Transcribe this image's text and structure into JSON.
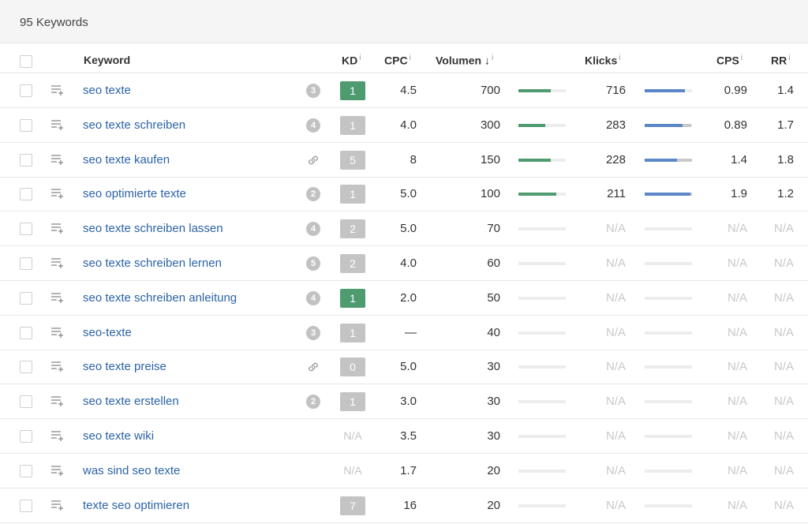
{
  "summary": {
    "count_label": "95 Keywords"
  },
  "colors": {
    "kd_green": "#4e9b6f",
    "kd_gray": "#c4c4c4",
    "volume_bar": "#4e9b6f",
    "click_bar": "#5b87c8"
  },
  "columns": {
    "keyword": "Keyword",
    "kd": "KD",
    "cpc": "CPC",
    "volume": "Volumen",
    "volume_sort": "↓",
    "clicks": "Klicks",
    "cps": "CPS",
    "rr": "RR",
    "info": "i"
  },
  "rows": [
    {
      "keyword": "seo texte",
      "serp": "3",
      "serp_icon": "serp-badge",
      "kd": "1",
      "kd_color": "green",
      "cpc": "4.5",
      "volume": "700",
      "volume_fill": 0.68,
      "clicks": "716",
      "clicks_fill": 0.85,
      "clicks_paid": 0.0,
      "cps": "0.99",
      "rr": "1.4"
    },
    {
      "keyword": "seo texte schreiben",
      "serp": "4",
      "serp_icon": "serp-badge",
      "kd": "1",
      "kd_color": "gray",
      "cpc": "4.0",
      "volume": "300",
      "volume_fill": 0.57,
      "clicks": "283",
      "clicks_fill": 0.8,
      "clicks_paid": 0.18,
      "cps": "0.89",
      "rr": "1.7"
    },
    {
      "keyword": "seo texte kaufen",
      "serp": "",
      "serp_icon": "link",
      "kd": "5",
      "kd_color": "gray",
      "cpc": "8",
      "volume": "150",
      "volume_fill": 0.68,
      "clicks": "228",
      "clicks_fill": 0.68,
      "clicks_paid": 0.32,
      "cps": "1.4",
      "rr": "1.8"
    },
    {
      "keyword": "seo optimierte texte",
      "serp": "2",
      "serp_icon": "serp-badge",
      "kd": "1",
      "kd_color": "gray",
      "cpc": "5.0",
      "volume": "100",
      "volume_fill": 0.8,
      "clicks": "211",
      "clicks_fill": 0.97,
      "clicks_paid": 0.03,
      "cps": "1.9",
      "rr": "1.2"
    },
    {
      "keyword": "seo texte schreiben lassen",
      "serp": "4",
      "serp_icon": "serp-badge",
      "kd": "2",
      "kd_color": "gray",
      "cpc": "5.0",
      "volume": "70",
      "volume_fill": 0,
      "clicks": "N/A",
      "clicks_fill": 0,
      "clicks_paid": 0,
      "cps": "N/A",
      "rr": "N/A"
    },
    {
      "keyword": "seo texte schreiben lernen",
      "serp": "5",
      "serp_icon": "serp-badge",
      "kd": "2",
      "kd_color": "gray",
      "cpc": "4.0",
      "volume": "60",
      "volume_fill": 0,
      "clicks": "N/A",
      "clicks_fill": 0,
      "clicks_paid": 0,
      "cps": "N/A",
      "rr": "N/A"
    },
    {
      "keyword": "seo texte schreiben anleitung",
      "serp": "4",
      "serp_icon": "serp-badge",
      "kd": "1",
      "kd_color": "green",
      "cpc": "2.0",
      "volume": "50",
      "volume_fill": 0,
      "clicks": "N/A",
      "clicks_fill": 0,
      "clicks_paid": 0,
      "cps": "N/A",
      "rr": "N/A"
    },
    {
      "keyword": "seo-texte",
      "serp": "3",
      "serp_icon": "serp-badge",
      "kd": "1",
      "kd_color": "gray",
      "cpc": "—",
      "volume": "40",
      "volume_fill": 0,
      "clicks": "N/A",
      "clicks_fill": 0,
      "clicks_paid": 0,
      "cps": "N/A",
      "rr": "N/A"
    },
    {
      "keyword": "seo texte preise",
      "serp": "",
      "serp_icon": "link",
      "kd": "0",
      "kd_color": "gray",
      "cpc": "5.0",
      "volume": "30",
      "volume_fill": 0,
      "clicks": "N/A",
      "clicks_fill": 0,
      "clicks_paid": 0,
      "cps": "N/A",
      "rr": "N/A"
    },
    {
      "keyword": "seo texte erstellen",
      "serp": "2",
      "serp_icon": "serp-badge",
      "kd": "1",
      "kd_color": "gray",
      "cpc": "3.0",
      "volume": "30",
      "volume_fill": 0,
      "clicks": "N/A",
      "clicks_fill": 0,
      "clicks_paid": 0,
      "cps": "N/A",
      "rr": "N/A"
    },
    {
      "keyword": "seo texte wiki",
      "serp": "",
      "serp_icon": "none",
      "kd": "N/A",
      "kd_color": "na",
      "cpc": "3.5",
      "volume": "30",
      "volume_fill": 0,
      "clicks": "N/A",
      "clicks_fill": 0,
      "clicks_paid": 0,
      "cps": "N/A",
      "rr": "N/A"
    },
    {
      "keyword": "was sind seo texte",
      "serp": "",
      "serp_icon": "none",
      "kd": "N/A",
      "kd_color": "na",
      "cpc": "1.7",
      "volume": "20",
      "volume_fill": 0,
      "clicks": "N/A",
      "clicks_fill": 0,
      "clicks_paid": 0,
      "cps": "N/A",
      "rr": "N/A"
    },
    {
      "keyword": "texte seo optimieren",
      "serp": "",
      "serp_icon": "none",
      "kd": "7",
      "kd_color": "gray",
      "cpc": "16",
      "volume": "20",
      "volume_fill": 0,
      "clicks": "N/A",
      "clicks_fill": 0,
      "clicks_paid": 0,
      "cps": "N/A",
      "rr": "N/A"
    }
  ]
}
